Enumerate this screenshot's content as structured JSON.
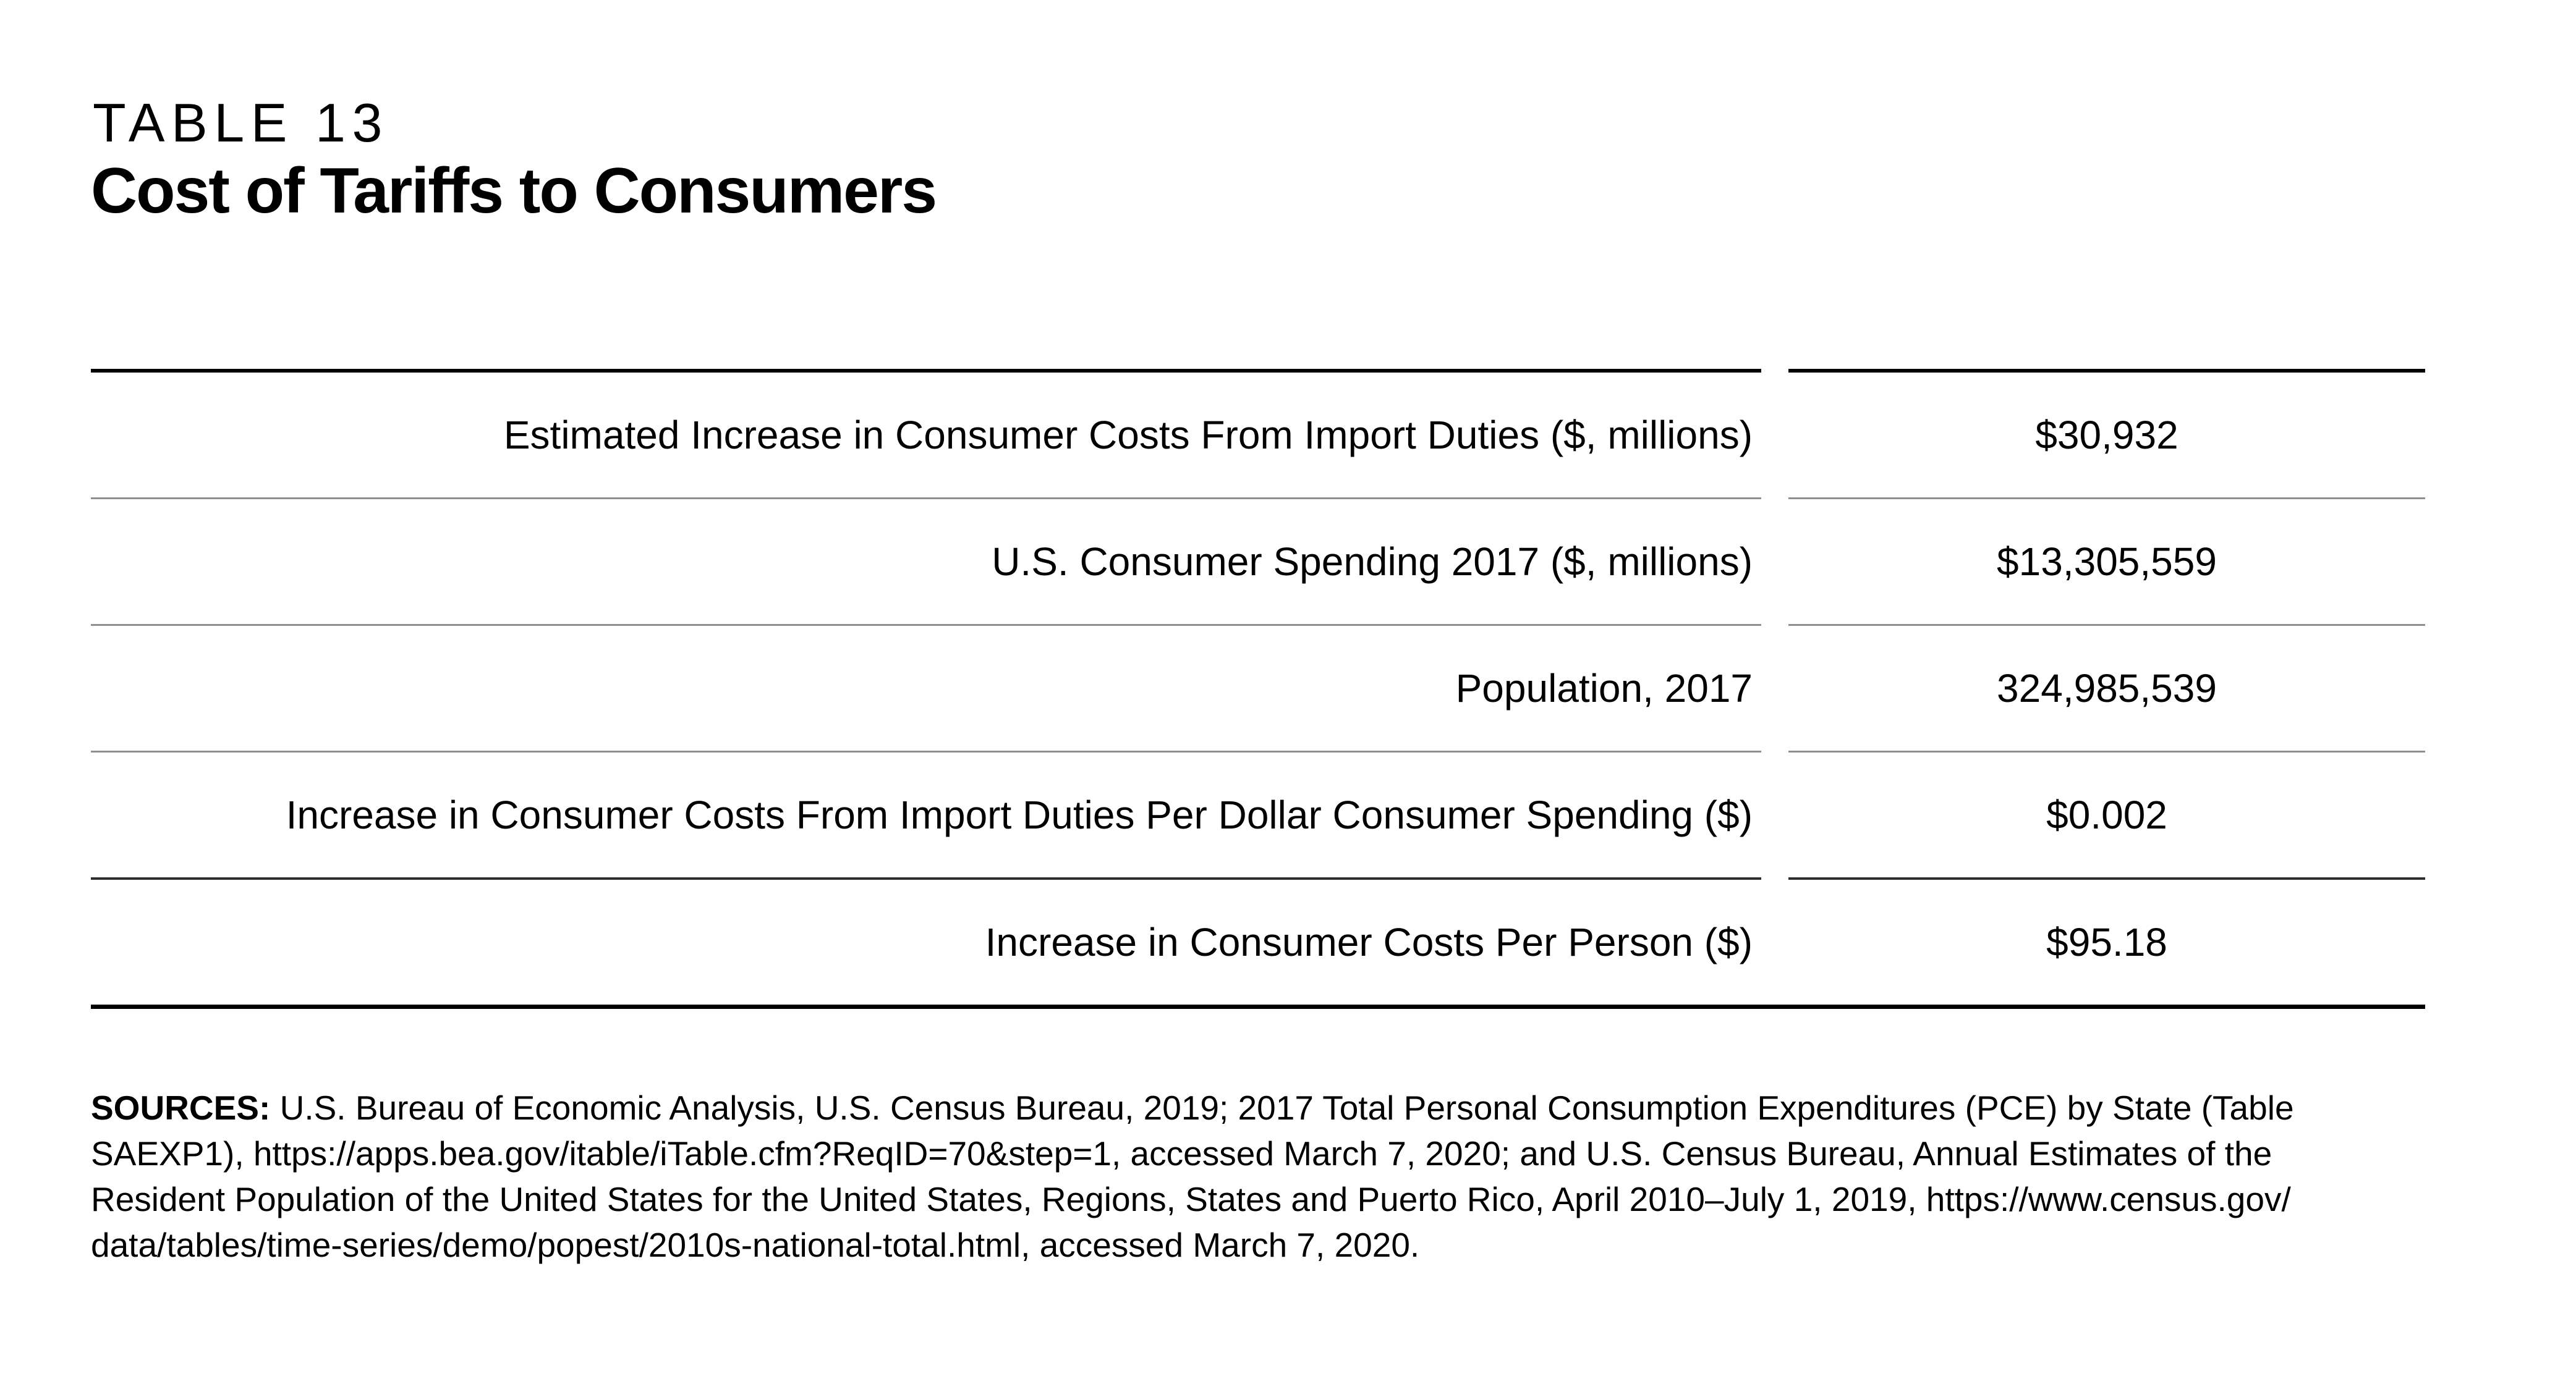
{
  "header": {
    "table_number": "TABLE 13",
    "title": "Cost of Tariffs to Consumers"
  },
  "table": {
    "rows": [
      {
        "label": "Estimated Increase in Consumer Costs From Import Duties ($, millions)",
        "value": "$30,932"
      },
      {
        "label": "U.S. Consumer Spending 2017 ($, millions)",
        "value": "$13,305,559"
      },
      {
        "label": "Population, 2017",
        "value": "324,985,539"
      },
      {
        "label": "Increase in Consumer Costs From Import Duties Per Dollar Consumer Spending ($)",
        "value": "$0.002"
      },
      {
        "label": "Increase in Consumer Costs Per Person ($)",
        "value": "$95.18"
      }
    ],
    "colors": {
      "top_rule": "#000000",
      "row_rule": "#8f8f8f",
      "last_row_rule": "#2e2e2e",
      "bottom_rule": "#000000"
    }
  },
  "sources": {
    "label": "SOURCES:",
    "lines": [
      " U.S. Bureau of Economic Analysis, U.S. Census Bureau, 2019; 2017 Total Personal Consumption Expenditures (PCE) by State (Table",
      "SAEXP1), https://apps.bea.gov/itable/iTable.cfm?ReqID=70&step=1, accessed March 7, 2020; and U.S. Census Bureau, Annual Estimates of the",
      "Resident Population of the United States for the United States, Regions, States and Puerto Rico, April 2010–July 1, 2019, https://www.census.gov/",
      "data/tables/time-series/demo/popest/2010s-national-total.html, accessed March 7, 2020."
    ]
  }
}
